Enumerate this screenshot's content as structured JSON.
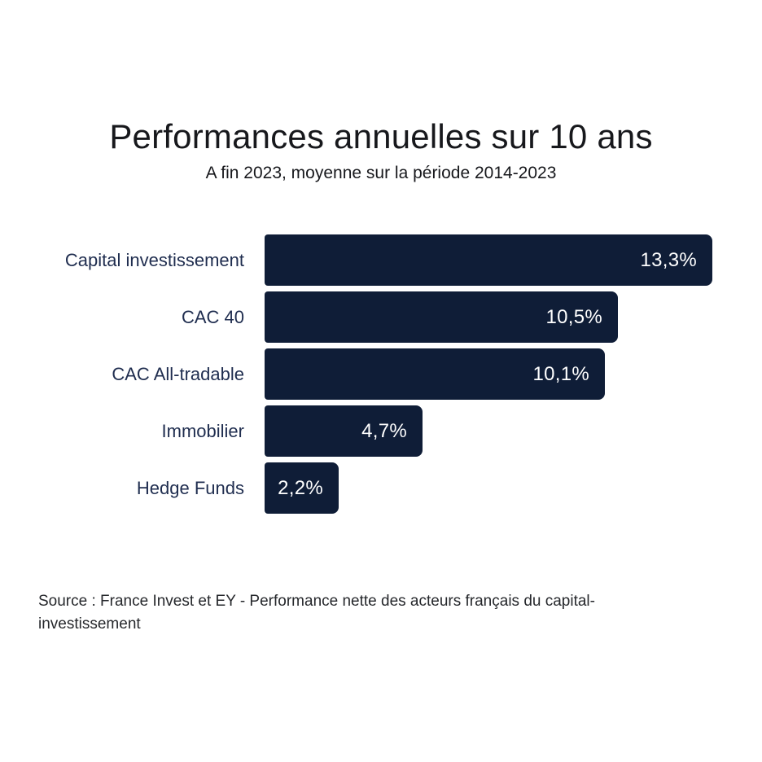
{
  "chart_data": {
    "type": "bar",
    "orientation": "horizontal",
    "title": "Performances annuelles sur 10 ans",
    "subtitle": "A fin 2023, moyenne sur la période 2014-2023",
    "categories": [
      "Capital investissement",
      "CAC 40",
      "CAC All-tradable",
      "Immobilier",
      "Hedge Funds"
    ],
    "values": [
      13.3,
      10.5,
      10.1,
      4.7,
      2.2
    ],
    "value_labels": [
      "13,3%",
      "10,5%",
      "10,1%",
      "4,7%",
      "2,2%"
    ],
    "xlim": [
      0,
      13.3
    ],
    "grid": false,
    "legend": false,
    "bar_color": "#0f1d37",
    "value_label_color": "#ffffff",
    "category_label_color": "#1f2d4f"
  },
  "source": {
    "lines": [
      "Source : France Invest et EY - Performance nette des acteurs français du capital-",
      "investissement"
    ]
  }
}
